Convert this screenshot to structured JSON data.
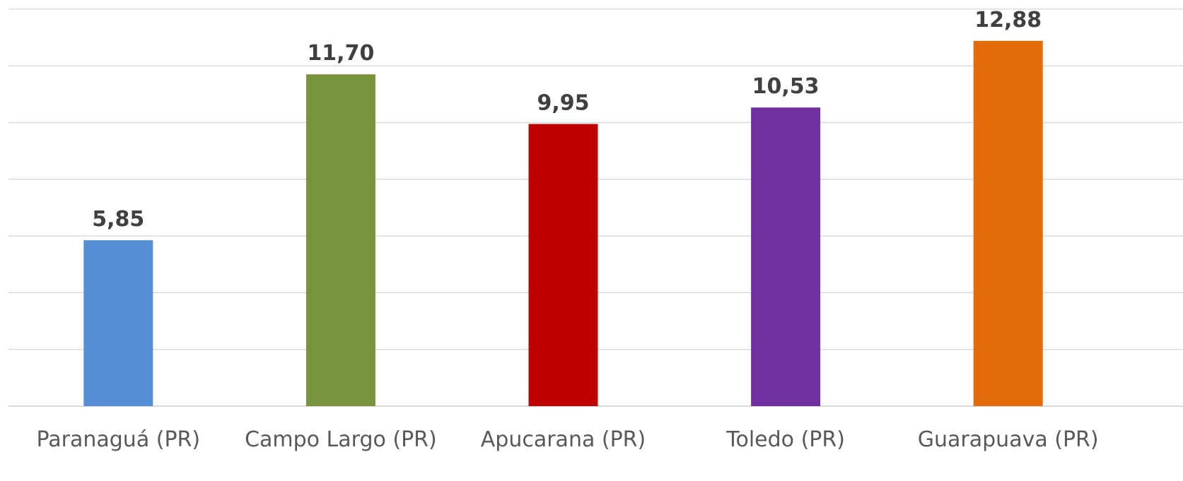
{
  "chart_data": {
    "type": "bar",
    "categories": [
      "Paranaguá (PR)",
      "Campo Largo (PR)",
      "Apucarana (PR)",
      "Toledo (PR)",
      "Guarapuava (PR)"
    ],
    "values": [
      5.85,
      11.7,
      9.95,
      10.53,
      12.88
    ],
    "data_labels": [
      "5,85",
      "11,70",
      "9,95",
      "10,53",
      "12,88"
    ],
    "colors": [
      "#558ed5",
      "#77933c",
      "#c00000",
      "#7030a0",
      "#e36c09"
    ],
    "gridline_color": "#d9d9d9",
    "title": "",
    "xlabel": "",
    "ylabel": "",
    "ylim": [
      0,
      14
    ],
    "grid": true,
    "legend": "none"
  }
}
